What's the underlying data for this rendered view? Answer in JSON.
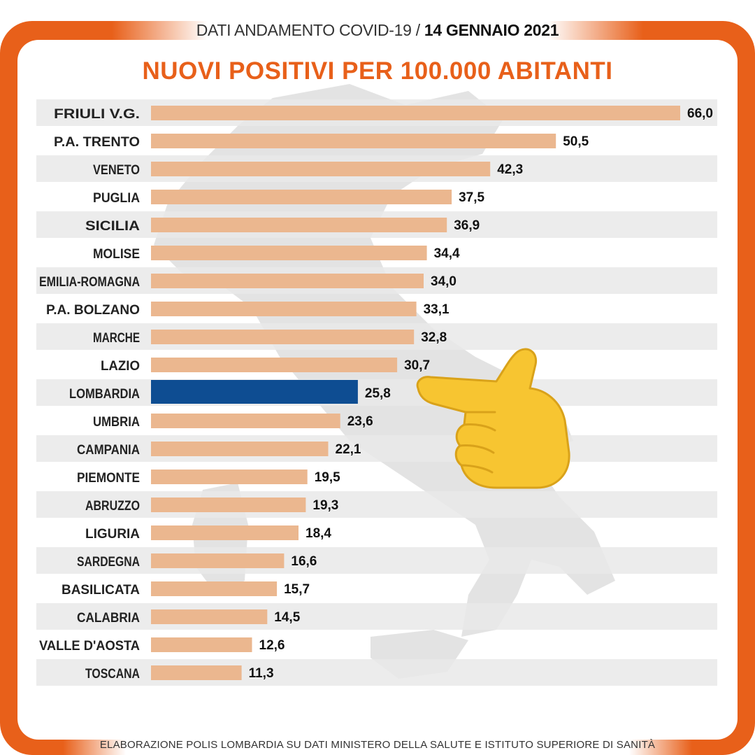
{
  "header": {
    "prefix": "DATI ANDAMENTO COVID-19 / ",
    "date": "14 GENNAIO 2021"
  },
  "colors": {
    "frame": "#e8601a",
    "bar": "#ebb78f",
    "highlight_bar": "#0e4d92",
    "stripe": "#e9e9e9",
    "title": "#e8601a"
  },
  "chart_data": {
    "type": "bar",
    "orientation": "horizontal",
    "title": "NUOVI POSITIVI PER 100.000 ABITANTI",
    "categories": [
      "FRIULI V.G.",
      "P.A. TRENTO",
      "VENETO",
      "PUGLIA",
      "SICILIA",
      "MOLISE",
      "EMILIA-ROMAGNA",
      "P.A. BOLZANO",
      "MARCHE",
      "LAZIO",
      "LOMBARDIA",
      "UMBRIA",
      "CAMPANIA",
      "PIEMONTE",
      "ABRUZZO",
      "LIGURIA",
      "SARDEGNA",
      "BASILICATA",
      "CALABRIA",
      "VALLE D'AOSTA",
      "TOSCANA"
    ],
    "values": [
      66.0,
      50.5,
      42.3,
      37.5,
      36.9,
      34.4,
      34.0,
      33.1,
      32.8,
      30.7,
      25.8,
      23.6,
      22.1,
      19.5,
      19.3,
      18.4,
      16.6,
      15.7,
      14.5,
      12.6,
      11.3
    ],
    "value_labels": [
      "66,0",
      "50,5",
      "42,3",
      "37,5",
      "36,9",
      "34,4",
      "34,0",
      "33,1",
      "32,8",
      "30,7",
      "25,8",
      "23,6",
      "22,1",
      "19,5",
      "19,3",
      "18,4",
      "16,6",
      "15,7",
      "14,5",
      "12,6",
      "11,3"
    ],
    "highlight": "LOMBARDIA",
    "xlim": [
      0,
      66.0
    ],
    "xlabel": "",
    "ylabel": "",
    "grid": false
  },
  "footer": {
    "source": "ELABORAZIONE POLIS LOMBARDIA SU DATI MINISTERO DELLA SALUTE E ISTITUTO SUPERIORE DI SANITÀ"
  },
  "icons": [
    "italy-map-icon",
    "pointing-hand-icon"
  ]
}
